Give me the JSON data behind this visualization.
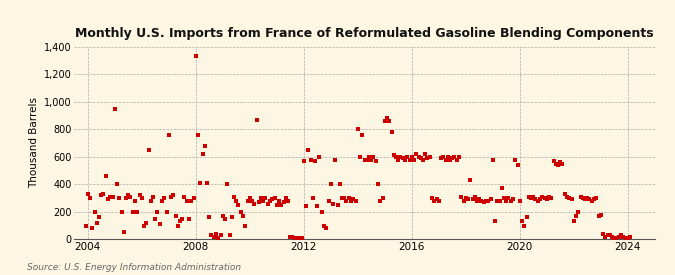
{
  "title": "Monthly U.S. Imports from France of Reformulated Gasoline Blending Components",
  "ylabel": "Thousand Barrels",
  "source": "Source: U.S. Energy Information Administration",
  "background_color": "#f5e6c8",
  "plot_bg_color": "#fdf6e3",
  "marker_color": "#cc0000",
  "marker": "s",
  "marker_size": 3.5,
  "ylim": [
    0,
    1400
  ],
  "yticks": [
    0,
    200,
    400,
    600,
    800,
    1000,
    1200,
    1400
  ],
  "ytick_labels": [
    "0",
    "200",
    "400",
    "600",
    "800",
    "1,000",
    "1,200",
    "1,400"
  ],
  "xstart": 2003.5,
  "xend": 2025.0,
  "xticks_years": [
    2004,
    2008,
    2012,
    2016,
    2020,
    2024
  ],
  "data_points": [
    [
      2003.92,
      100
    ],
    [
      2004.0,
      330
    ],
    [
      2004.08,
      300
    ],
    [
      2004.17,
      80
    ],
    [
      2004.25,
      200
    ],
    [
      2004.33,
      120
    ],
    [
      2004.42,
      160
    ],
    [
      2004.5,
      320
    ],
    [
      2004.58,
      330
    ],
    [
      2004.67,
      460
    ],
    [
      2004.75,
      290
    ],
    [
      2004.83,
      310
    ],
    [
      2004.92,
      310
    ],
    [
      2005.0,
      950
    ],
    [
      2005.08,
      400
    ],
    [
      2005.17,
      300
    ],
    [
      2005.25,
      200
    ],
    [
      2005.33,
      50
    ],
    [
      2005.42,
      300
    ],
    [
      2005.5,
      320
    ],
    [
      2005.58,
      310
    ],
    [
      2005.67,
      200
    ],
    [
      2005.75,
      280
    ],
    [
      2005.83,
      200
    ],
    [
      2005.92,
      320
    ],
    [
      2006.0,
      300
    ],
    [
      2006.08,
      100
    ],
    [
      2006.17,
      120
    ],
    [
      2006.25,
      650
    ],
    [
      2006.33,
      280
    ],
    [
      2006.42,
      310
    ],
    [
      2006.5,
      150
    ],
    [
      2006.58,
      200
    ],
    [
      2006.67,
      110
    ],
    [
      2006.75,
      280
    ],
    [
      2006.83,
      300
    ],
    [
      2006.92,
      200
    ],
    [
      2007.0,
      760
    ],
    [
      2007.08,
      310
    ],
    [
      2007.17,
      320
    ],
    [
      2007.25,
      170
    ],
    [
      2007.33,
      100
    ],
    [
      2007.42,
      130
    ],
    [
      2007.5,
      150
    ],
    [
      2007.58,
      310
    ],
    [
      2007.67,
      280
    ],
    [
      2007.75,
      150
    ],
    [
      2007.83,
      280
    ],
    [
      2007.92,
      300
    ],
    [
      2008.0,
      1330
    ],
    [
      2008.08,
      760
    ],
    [
      2008.17,
      410
    ],
    [
      2008.25,
      620
    ],
    [
      2008.33,
      680
    ],
    [
      2008.42,
      410
    ],
    [
      2008.5,
      160
    ],
    [
      2008.58,
      30
    ],
    [
      2008.67,
      20
    ],
    [
      2008.75,
      40
    ],
    [
      2008.83,
      10
    ],
    [
      2008.92,
      30
    ],
    [
      2009.0,
      170
    ],
    [
      2009.08,
      150
    ],
    [
      2009.17,
      400
    ],
    [
      2009.25,
      30
    ],
    [
      2009.33,
      160
    ],
    [
      2009.42,
      310
    ],
    [
      2009.5,
      280
    ],
    [
      2009.58,
      250
    ],
    [
      2009.67,
      200
    ],
    [
      2009.75,
      170
    ],
    [
      2009.83,
      100
    ],
    [
      2009.92,
      280
    ],
    [
      2010.0,
      300
    ],
    [
      2010.08,
      280
    ],
    [
      2010.17,
      260
    ],
    [
      2010.25,
      870
    ],
    [
      2010.33,
      270
    ],
    [
      2010.42,
      300
    ],
    [
      2010.5,
      280
    ],
    [
      2010.58,
      300
    ],
    [
      2010.67,
      260
    ],
    [
      2010.75,
      280
    ],
    [
      2010.83,
      290
    ],
    [
      2010.92,
      300
    ],
    [
      2011.0,
      250
    ],
    [
      2011.08,
      280
    ],
    [
      2011.17,
      250
    ],
    [
      2011.25,
      270
    ],
    [
      2011.33,
      300
    ],
    [
      2011.42,
      280
    ],
    [
      2011.5,
      20
    ],
    [
      2011.58,
      20
    ],
    [
      2011.67,
      10
    ],
    [
      2011.75,
      10
    ],
    [
      2011.83,
      10
    ],
    [
      2011.92,
      10
    ],
    [
      2012.0,
      570
    ],
    [
      2012.08,
      240
    ],
    [
      2012.17,
      650
    ],
    [
      2012.25,
      580
    ],
    [
      2012.33,
      300
    ],
    [
      2012.42,
      570
    ],
    [
      2012.5,
      240
    ],
    [
      2012.58,
      600
    ],
    [
      2012.67,
      200
    ],
    [
      2012.75,
      100
    ],
    [
      2012.83,
      80
    ],
    [
      2012.92,
      280
    ],
    [
      2013.0,
      400
    ],
    [
      2013.08,
      260
    ],
    [
      2013.17,
      580
    ],
    [
      2013.25,
      250
    ],
    [
      2013.33,
      400
    ],
    [
      2013.42,
      300
    ],
    [
      2013.5,
      300
    ],
    [
      2013.58,
      280
    ],
    [
      2013.67,
      300
    ],
    [
      2013.75,
      280
    ],
    [
      2013.83,
      290
    ],
    [
      2013.92,
      280
    ],
    [
      2014.0,
      800
    ],
    [
      2014.08,
      600
    ],
    [
      2014.17,
      760
    ],
    [
      2014.25,
      580
    ],
    [
      2014.33,
      580
    ],
    [
      2014.42,
      600
    ],
    [
      2014.5,
      580
    ],
    [
      2014.58,
      600
    ],
    [
      2014.67,
      570
    ],
    [
      2014.75,
      400
    ],
    [
      2014.83,
      280
    ],
    [
      2014.92,
      300
    ],
    [
      2015.0,
      860
    ],
    [
      2015.08,
      880
    ],
    [
      2015.17,
      860
    ],
    [
      2015.25,
      780
    ],
    [
      2015.33,
      610
    ],
    [
      2015.42,
      600
    ],
    [
      2015.5,
      580
    ],
    [
      2015.58,
      600
    ],
    [
      2015.67,
      590
    ],
    [
      2015.75,
      580
    ],
    [
      2015.83,
      600
    ],
    [
      2015.92,
      580
    ],
    [
      2016.0,
      600
    ],
    [
      2016.08,
      580
    ],
    [
      2016.17,
      620
    ],
    [
      2016.25,
      600
    ],
    [
      2016.33,
      590
    ],
    [
      2016.42,
      580
    ],
    [
      2016.5,
      620
    ],
    [
      2016.58,
      590
    ],
    [
      2016.67,
      600
    ],
    [
      2016.75,
      300
    ],
    [
      2016.83,
      280
    ],
    [
      2016.92,
      290
    ],
    [
      2017.0,
      280
    ],
    [
      2017.08,
      590
    ],
    [
      2017.17,
      600
    ],
    [
      2017.25,
      580
    ],
    [
      2017.33,
      600
    ],
    [
      2017.42,
      580
    ],
    [
      2017.5,
      590
    ],
    [
      2017.58,
      600
    ],
    [
      2017.67,
      580
    ],
    [
      2017.75,
      600
    ],
    [
      2017.83,
      310
    ],
    [
      2017.92,
      280
    ],
    [
      2018.0,
      300
    ],
    [
      2018.08,
      290
    ],
    [
      2018.17,
      430
    ],
    [
      2018.25,
      290
    ],
    [
      2018.33,
      310
    ],
    [
      2018.42,
      280
    ],
    [
      2018.5,
      290
    ],
    [
      2018.58,
      280
    ],
    [
      2018.67,
      270
    ],
    [
      2018.75,
      280
    ],
    [
      2018.83,
      280
    ],
    [
      2018.92,
      290
    ],
    [
      2019.0,
      580
    ],
    [
      2019.08,
      130
    ],
    [
      2019.17,
      280
    ],
    [
      2019.25,
      280
    ],
    [
      2019.33,
      370
    ],
    [
      2019.42,
      300
    ],
    [
      2019.5,
      280
    ],
    [
      2019.58,
      300
    ],
    [
      2019.67,
      280
    ],
    [
      2019.75,
      290
    ],
    [
      2019.83,
      580
    ],
    [
      2019.92,
      540
    ],
    [
      2020.0,
      280
    ],
    [
      2020.08,
      130
    ],
    [
      2020.17,
      100
    ],
    [
      2020.25,
      160
    ],
    [
      2020.33,
      310
    ],
    [
      2020.42,
      300
    ],
    [
      2020.5,
      310
    ],
    [
      2020.58,
      290
    ],
    [
      2020.67,
      280
    ],
    [
      2020.75,
      290
    ],
    [
      2020.83,
      310
    ],
    [
      2020.92,
      300
    ],
    [
      2021.0,
      290
    ],
    [
      2021.08,
      310
    ],
    [
      2021.17,
      300
    ],
    [
      2021.25,
      570
    ],
    [
      2021.33,
      550
    ],
    [
      2021.42,
      540
    ],
    [
      2021.5,
      560
    ],
    [
      2021.58,
      550
    ],
    [
      2021.67,
      330
    ],
    [
      2021.75,
      310
    ],
    [
      2021.83,
      300
    ],
    [
      2021.92,
      290
    ],
    [
      2022.0,
      130
    ],
    [
      2022.08,
      170
    ],
    [
      2022.17,
      200
    ],
    [
      2022.25,
      310
    ],
    [
      2022.33,
      300
    ],
    [
      2022.42,
      290
    ],
    [
      2022.5,
      300
    ],
    [
      2022.58,
      290
    ],
    [
      2022.67,
      280
    ],
    [
      2022.75,
      290
    ],
    [
      2022.83,
      300
    ],
    [
      2022.92,
      170
    ],
    [
      2023.0,
      180
    ],
    [
      2023.08,
      40
    ],
    [
      2023.17,
      20
    ],
    [
      2023.25,
      30
    ],
    [
      2023.33,
      30
    ],
    [
      2023.42,
      20
    ],
    [
      2023.5,
      10
    ],
    [
      2023.58,
      10
    ],
    [
      2023.67,
      20
    ],
    [
      2023.75,
      30
    ],
    [
      2023.83,
      20
    ],
    [
      2023.92,
      10
    ],
    [
      2024.0,
      10
    ],
    [
      2024.08,
      20
    ]
  ]
}
